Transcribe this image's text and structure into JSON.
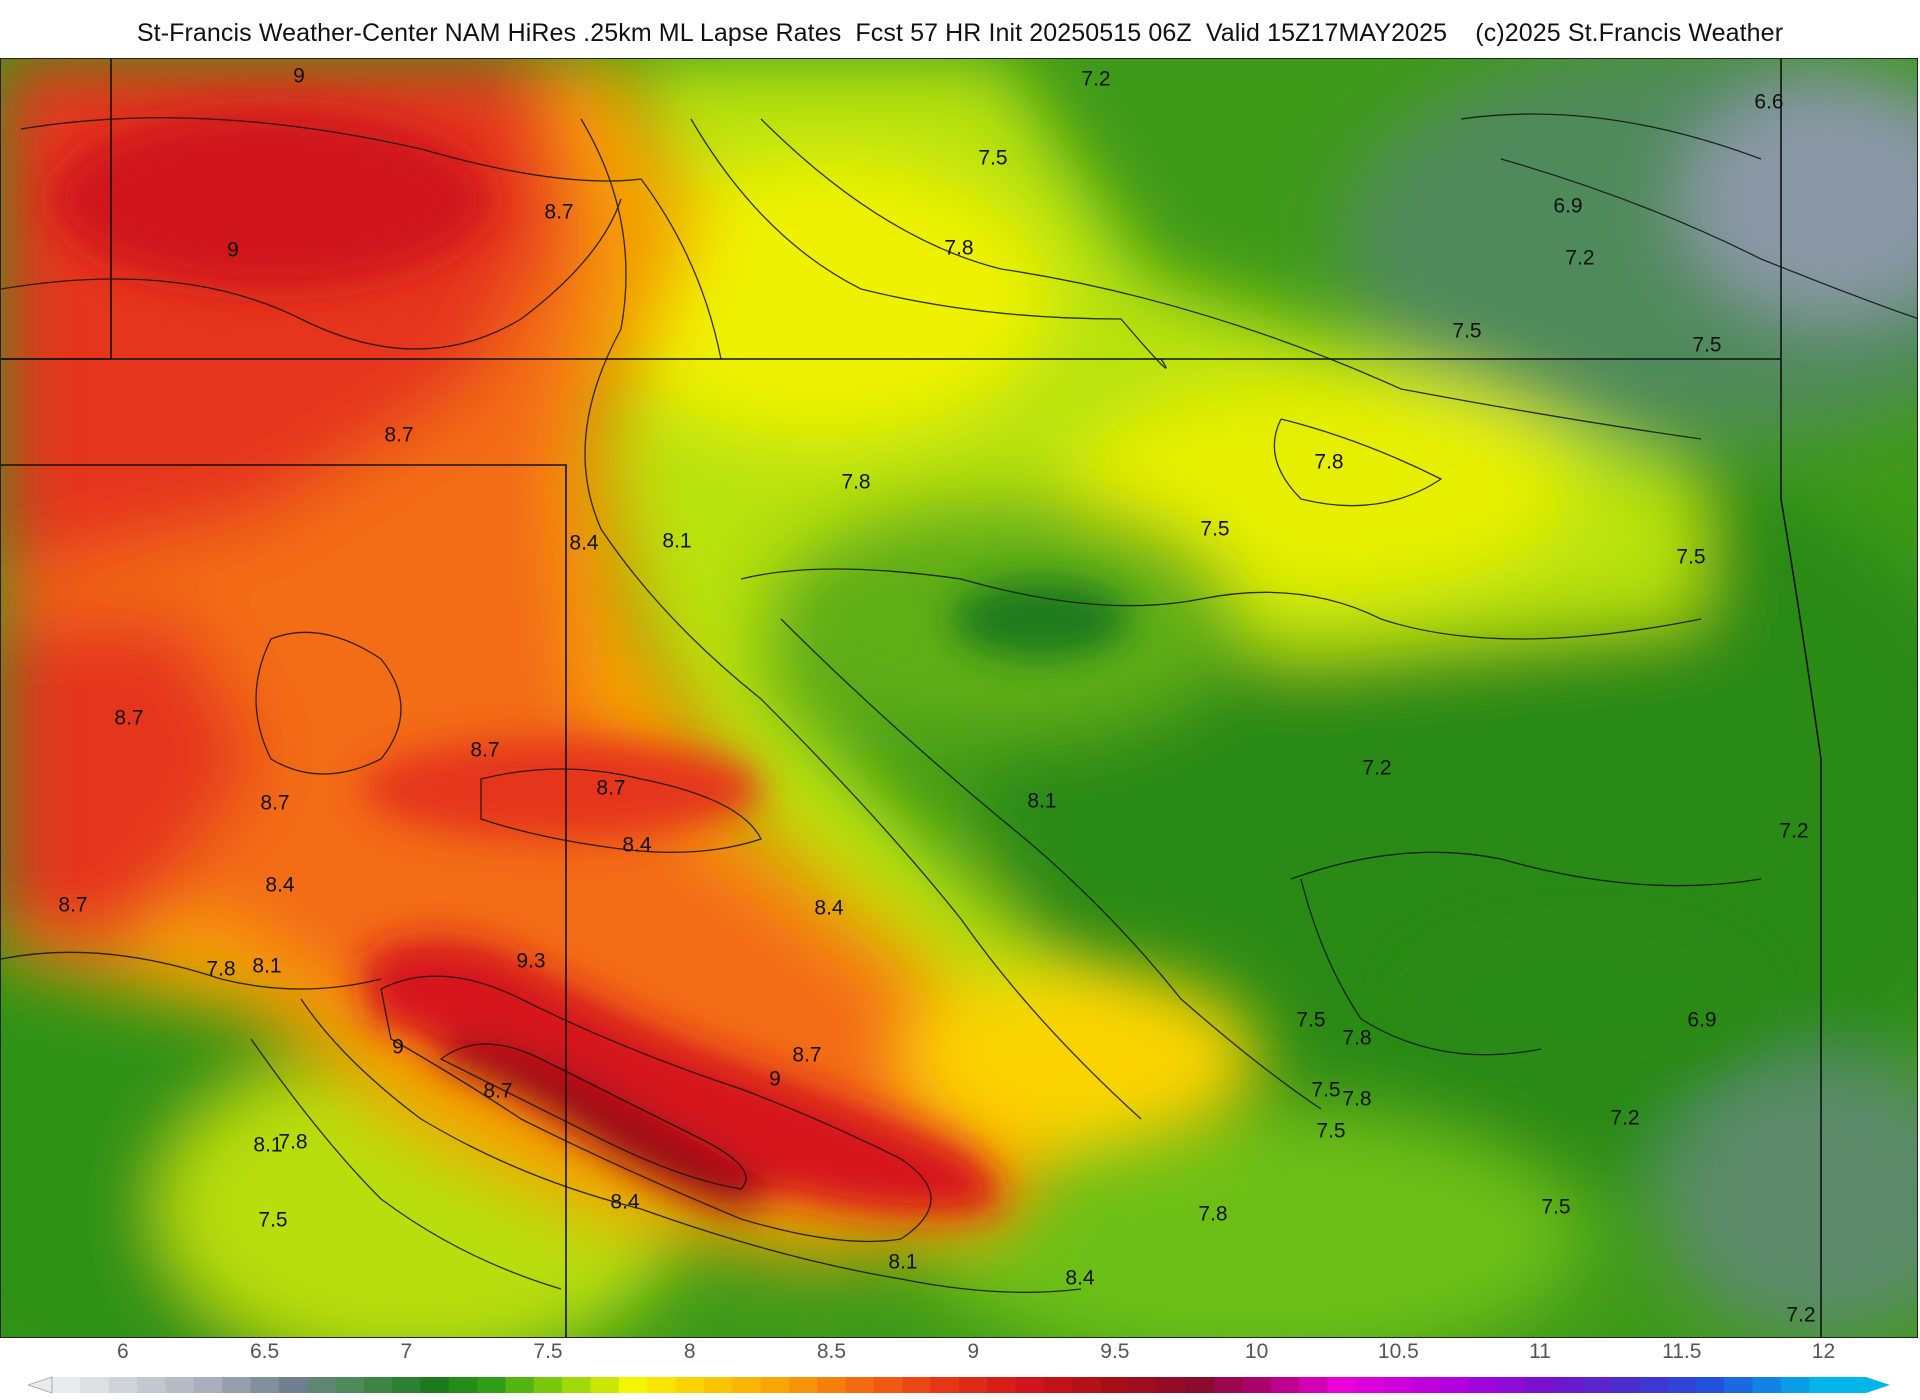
{
  "header": {
    "title": "St-Francis Weather-Center NAM HiRes .25km ML Lapse Rates  Fcst 57 HR Init 20250515 06Z  Valid 15Z17MAY2025    (c)2025 St.Francis Weather"
  },
  "map": {
    "contour_labels": [
      "9",
      "8.7",
      "9",
      "8.7",
      "8.4",
      "8.1",
      "7.8",
      "8.7",
      "8.7",
      "8.7",
      "8.7",
      "8.4",
      "8.7",
      "8.4",
      "8.4",
      "7.8",
      "8.1",
      "9.3",
      "9",
      "8.7",
      "8.7",
      "9",
      "8.1",
      "7.8",
      "7.5",
      "8.4",
      "8.1",
      "8.4",
      "8.1",
      "7.8",
      "7.5",
      "7.8",
      "7.2",
      "7.5",
      "7.8",
      "6.6",
      "6.9",
      "7.2",
      "7.5",
      "7.5",
      "7.8",
      "7.5",
      "7.5",
      "7.2",
      "7.2",
      "7.5",
      "6.9",
      "7.8",
      "7.5",
      "7.2",
      "7.5",
      "7.2"
    ]
  },
  "colorbar": {
    "tick_labels": [
      "6",
      "6.5",
      "7",
      "7.5",
      "8",
      "8.5",
      "9",
      "9.5",
      "10",
      "10.5",
      "11",
      "11.5",
      "12"
    ],
    "min": 5.75,
    "max": 12.15,
    "step": 0.1,
    "color_stops": [
      {
        "v": 5.8,
        "color": "#e9ecef"
      },
      {
        "v": 6.3,
        "color": "#a7b0bc"
      },
      {
        "v": 6.6,
        "color": "#6f7f8d"
      },
      {
        "v": 6.8,
        "color": "#4f8a5a"
      },
      {
        "v": 7.1,
        "color": "#1c7a1c"
      },
      {
        "v": 7.3,
        "color": "#2f9e16"
      },
      {
        "v": 7.55,
        "color": "#8cd20a"
      },
      {
        "v": 7.8,
        "color": "#f4f500"
      },
      {
        "v": 8.0,
        "color": "#fbd400"
      },
      {
        "v": 8.3,
        "color": "#f9a700"
      },
      {
        "v": 8.6,
        "color": "#f46a10"
      },
      {
        "v": 8.9,
        "color": "#e53616"
      },
      {
        "v": 9.2,
        "color": "#d0141b"
      },
      {
        "v": 9.5,
        "color": "#a50e15"
      },
      {
        "v": 9.8,
        "color": "#8c0a2e"
      },
      {
        "v": 10.05,
        "color": "#b3007d"
      },
      {
        "v": 10.3,
        "color": "#ea00d8"
      },
      {
        "v": 10.7,
        "color": "#b000e0"
      },
      {
        "v": 11.0,
        "color": "#7a10d0"
      },
      {
        "v": 11.3,
        "color": "#4a2ccc"
      },
      {
        "v": 11.6,
        "color": "#2450e0"
      },
      {
        "v": 12.0,
        "color": "#00b6e8"
      }
    ]
  }
}
